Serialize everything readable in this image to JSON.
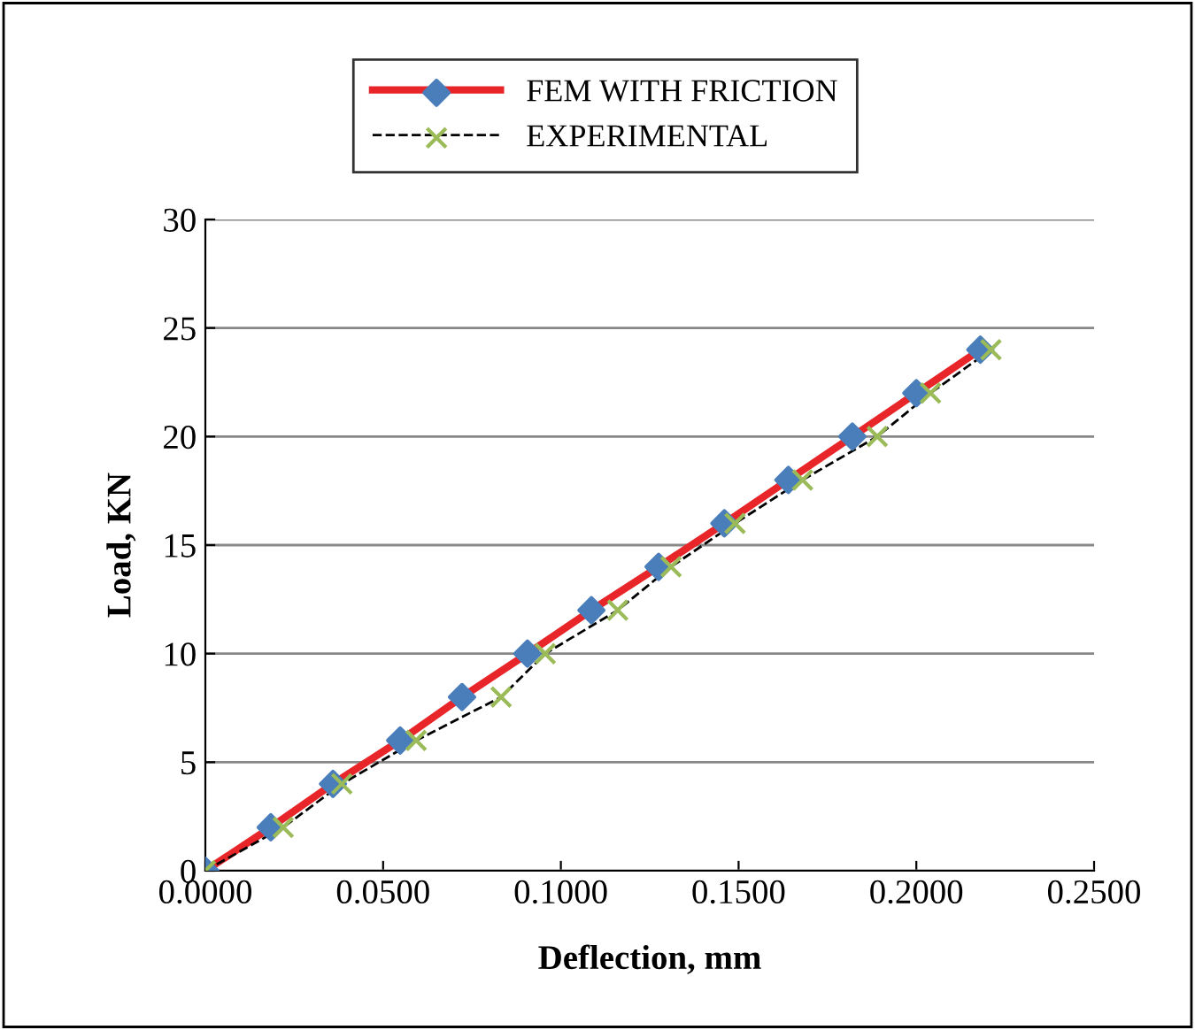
{
  "chart_data": {
    "type": "line",
    "xlabel": "Deflection, mm",
    "ylabel": "Load, KN",
    "xlim": [
      0,
      0.25
    ],
    "xticks": [
      {
        "value": 0,
        "label": "0.0000"
      },
      {
        "value": 0.05,
        "label": "0.0500"
      },
      {
        "value": 0.1,
        "label": "0.1000"
      },
      {
        "value": 0.15,
        "label": "0.1500"
      },
      {
        "value": 0.2,
        "label": "0.2000"
      },
      {
        "value": 0.25,
        "label": "0.2500"
      }
    ],
    "ylim": [
      0,
      30
    ],
    "yticks": [
      0,
      5,
      10,
      15,
      20,
      25,
      30
    ],
    "grid": "y",
    "legend": "top",
    "series": [
      {
        "name": "FEM WITH FRICTION",
        "color": "#e8262a",
        "colors": [
          "#4a7ebb",
          "#4a7ebb",
          "#4a7ebb",
          "#4a7ebb",
          "#4a7ebb",
          "#4a7ebb",
          "#4a7ebb",
          "#4a7ebb",
          "#4a7ebb",
          "#4a7ebb",
          "#4a7ebb",
          "#4a7ebb",
          "#4a7ebb"
        ],
        "marker": "diamond",
        "line_style": "solid",
        "x": [
          0,
          0.0184,
          0.0359,
          0.0548,
          0.0722,
          0.0906,
          0.1086,
          0.1275,
          0.146,
          0.164,
          0.182,
          0.2,
          0.218
        ],
        "values": [
          0,
          2,
          4,
          6,
          8,
          10,
          12,
          14,
          16,
          18,
          20,
          22,
          24
        ]
      },
      {
        "name": "EXPERIMENTAL",
        "color": "#000000",
        "colors": [
          "#9bbb59",
          "#9bbb59",
          "#9bbb59",
          "#9bbb59",
          "#9bbb59",
          "#9bbb59",
          "#9bbb59",
          "#9bbb59",
          "#9bbb59",
          "#9bbb59",
          "#9bbb59",
          "#9bbb59",
          "#9bbb59"
        ],
        "marker": "cross",
        "line_style": "dashed",
        "x": [
          0,
          0.0219,
          0.0384,
          0.0593,
          0.0832,
          0.0956,
          0.116,
          0.131,
          0.149,
          0.168,
          0.189,
          0.204,
          0.221
        ],
        "values": [
          0,
          2,
          4,
          6,
          8,
          10,
          12,
          14,
          16,
          18,
          20,
          22,
          24
        ]
      }
    ]
  }
}
